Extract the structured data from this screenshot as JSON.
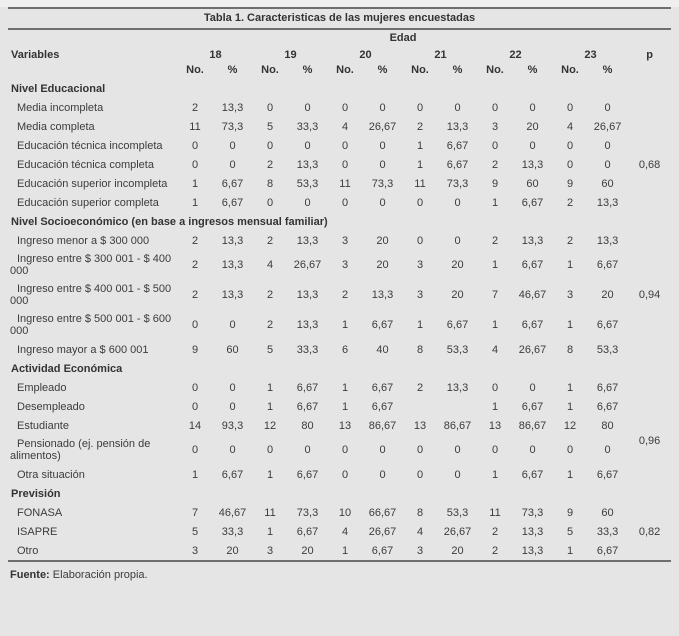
{
  "title": "Tabla 1. Caracteristicas de las mujeres encuestadas",
  "header": {
    "group_label": "Edad",
    "variables_label": "Variables",
    "ages": [
      "18",
      "19",
      "20",
      "21",
      "22",
      "23"
    ],
    "sub_no": "No.",
    "sub_pct": "%",
    "p_label": "p"
  },
  "sections": [
    {
      "title": "Nivel Educacional",
      "rows": [
        {
          "label": "Media incompleta",
          "values": [
            "2",
            "13,3",
            "0",
            "0",
            "0",
            "0",
            "0",
            "0",
            "0",
            "0",
            "0",
            "0"
          ],
          "p": ""
        },
        {
          "label": "Media completa",
          "values": [
            "11",
            "73,3",
            "5",
            "33,3",
            "4",
            "26,67",
            "2",
            "13,3",
            "3",
            "20",
            "4",
            "26,67"
          ],
          "p": ""
        },
        {
          "label": "Educación técnica incompleta",
          "values": [
            "0",
            "0",
            "0",
            "0",
            "0",
            "0",
            "1",
            "6,67",
            "0",
            "0",
            "0",
            "0"
          ],
          "p": ""
        },
        {
          "label": "Educación técnica completa",
          "values": [
            "0",
            "0",
            "2",
            "13,3",
            "0",
            "0",
            "1",
            "6,67",
            "2",
            "13,3",
            "0",
            "0"
          ],
          "p": "0,68",
          "p_span": 1
        },
        {
          "label": "Educación superior incompleta",
          "values": [
            "1",
            "6,67",
            "8",
            "53,3",
            "11",
            "73,3",
            "11",
            "73,3",
            "9",
            "60",
            "9",
            "60"
          ],
          "p": ""
        },
        {
          "label": "Educación superior completa",
          "values": [
            "1",
            "6,67",
            "0",
            "0",
            "0",
            "0",
            "0",
            "0",
            "1",
            "6,67",
            "2",
            "13,3"
          ],
          "p": ""
        }
      ]
    },
    {
      "title": "Nivel Socioeconómico (en base a ingresos mensual familiar)",
      "rows": [
        {
          "label": "Ingreso menor a $ 300 000",
          "values": [
            "2",
            "13,3",
            "2",
            "13,3",
            "3",
            "20",
            "0",
            "0",
            "2",
            "13,3",
            "2",
            "13,3"
          ],
          "p": ""
        },
        {
          "label": "Ingreso entre $ 300 001 - $ 400 000",
          "values": [
            "2",
            "13,3",
            "4",
            "26,67",
            "3",
            "20",
            "3",
            "20",
            "1",
            "6,67",
            "1",
            "6,67"
          ],
          "p": ""
        },
        {
          "label": "Ingreso entre $ 400 001 - $ 500 000",
          "values": [
            "2",
            "13,3",
            "2",
            "13,3",
            "2",
            "13,3",
            "3",
            "20",
            "7",
            "46,67",
            "3",
            "20"
          ],
          "p": "0,94",
          "p_span": 1
        },
        {
          "label": "Ingreso entre $ 500 001 - $ 600 000",
          "values": [
            "0",
            "0",
            "2",
            "13,3",
            "1",
            "6,67",
            "1",
            "6,67",
            "1",
            "6,67",
            "1",
            "6,67"
          ],
          "p": ""
        },
        {
          "label": "Ingreso mayor a $ 600 001",
          "values": [
            "9",
            "60",
            "5",
            "33,3",
            "6",
            "40",
            "8",
            "53,3",
            "4",
            "26,67",
            "8",
            "53,3"
          ],
          "p": ""
        }
      ]
    },
    {
      "title": "Actividad Económica",
      "rows": [
        {
          "label": "Empleado",
          "values": [
            "0",
            "0",
            "1",
            "6,67",
            "1",
            "6,67",
            "2",
            "13,3",
            "0",
            "0",
            "1",
            "6,67"
          ],
          "p": ""
        },
        {
          "label": "Desempleado",
          "values": [
            "0",
            "0",
            "1",
            "6,67",
            "1",
            "6,67",
            "",
            "",
            "1",
            "6,67",
            "1",
            "6,67"
          ],
          "p": ""
        },
        {
          "label": "Estudiante",
          "values": [
            "14",
            "93,3",
            "12",
            "80",
            "13",
            "86,67",
            "13",
            "86,67",
            "13",
            "86,67",
            "12",
            "80"
          ],
          "p": "0,96",
          "p_span": 2
        },
        {
          "label": "Pensionado (ej. pensión de alimentos)",
          "values": [
            "0",
            "0",
            "0",
            "0",
            "0",
            "0",
            "0",
            "0",
            "0",
            "0",
            "0",
            "0"
          ],
          "p": ""
        },
        {
          "label": "Otra situación",
          "values": [
            "1",
            "6,67",
            "1",
            "6,67",
            "0",
            "0",
            "0",
            "0",
            "1",
            "6,67",
            "1",
            "6,67"
          ],
          "p": ""
        }
      ]
    },
    {
      "title": "Previsión",
      "rows": [
        {
          "label": "FONASA",
          "values": [
            "7",
            "46,67",
            "11",
            "73,3",
            "10",
            "66,67",
            "8",
            "53,3",
            "11",
            "73,3",
            "9",
            "60"
          ],
          "p": ""
        },
        {
          "label": "ISAPRE",
          "values": [
            "5",
            "33,3",
            "1",
            "6,67",
            "4",
            "26,67",
            "4",
            "26,67",
            "2",
            "13,3",
            "5",
            "33,3"
          ],
          "p": "0,82",
          "p_span": 1
        },
        {
          "label": "Otro",
          "values": [
            "3",
            "20",
            "3",
            "20",
            "1",
            "6,67",
            "3",
            "20",
            "2",
            "13,3",
            "1",
            "6,67"
          ],
          "p": ""
        }
      ]
    }
  ],
  "footer": {
    "source_label": "Fuente:",
    "source_text": "Elaboración propia."
  }
}
